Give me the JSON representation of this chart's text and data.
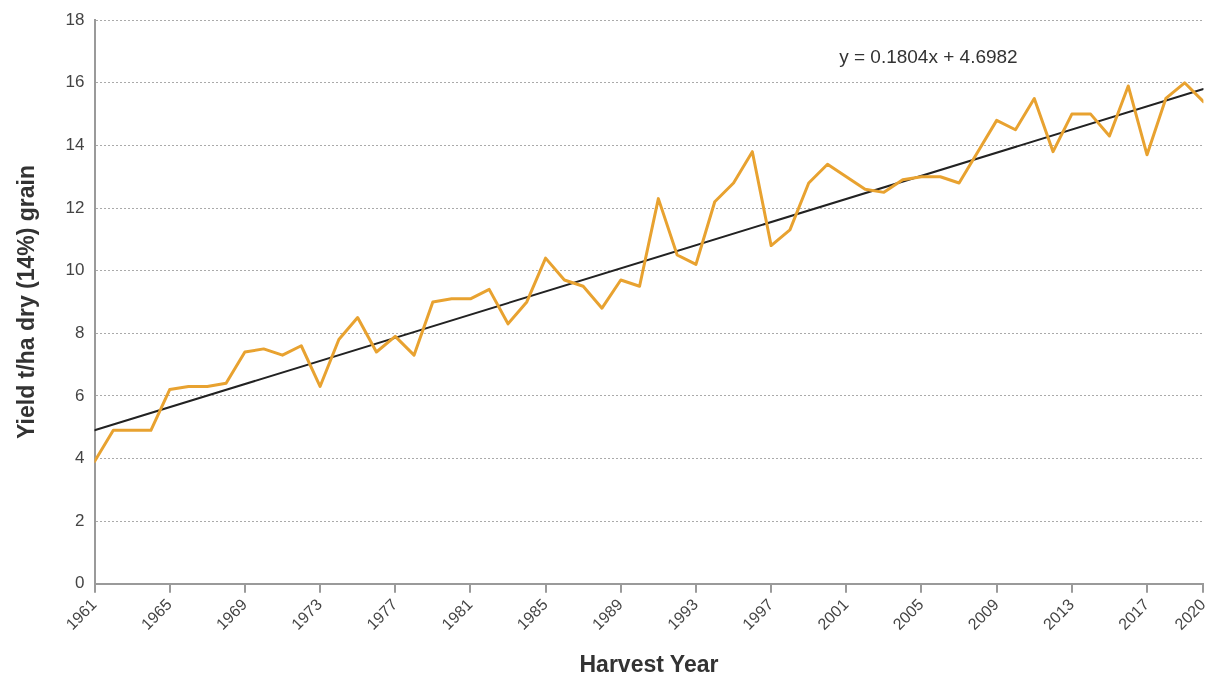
{
  "chart_data": {
    "type": "line",
    "xlabel": "Harvest Year",
    "ylabel": "Yield t/ha dry (14%) grain",
    "x": [
      1961,
      1962,
      1963,
      1964,
      1965,
      1966,
      1967,
      1968,
      1969,
      1970,
      1971,
      1972,
      1973,
      1974,
      1975,
      1976,
      1977,
      1978,
      1979,
      1980,
      1981,
      1982,
      1983,
      1984,
      1985,
      1986,
      1987,
      1988,
      1989,
      1990,
      1991,
      1992,
      1993,
      1994,
      1995,
      1996,
      1997,
      1998,
      1999,
      2000,
      2001,
      2002,
      2003,
      2004,
      2005,
      2006,
      2007,
      2008,
      2009,
      2010,
      2011,
      2012,
      2013,
      2014,
      2015,
      2016,
      2017,
      2018,
      2019,
      2020
    ],
    "series": [
      {
        "type": "line",
        "color": "#e8a230",
        "values": [
          3.9,
          4.9,
          4.9,
          4.9,
          6.2,
          6.3,
          6.3,
          6.4,
          7.4,
          7.5,
          7.3,
          7.6,
          6.3,
          7.8,
          8.5,
          7.4,
          7.9,
          7.3,
          9.0,
          9.1,
          9.1,
          9.4,
          8.3,
          9.0,
          10.4,
          9.7,
          9.5,
          8.8,
          9.7,
          9.5,
          12.3,
          10.5,
          10.2,
          12.2,
          12.8,
          13.8,
          10.8,
          11.3,
          12.8,
          13.4,
          13.0,
          12.6,
          12.5,
          12.9,
          13.0,
          13.0,
          12.8,
          13.8,
          14.8,
          14.5,
          15.5,
          13.8,
          15.0,
          15.0,
          14.3,
          15.9,
          13.7,
          15.5,
          16.0,
          15.4
        ]
      },
      {
        "type": "line",
        "color": "#222222",
        "x": [
          1961,
          2020
        ],
        "values": [
          4.9,
          15.8
        ]
      }
    ],
    "xlim": [
      1961,
      2020
    ],
    "xticks": [
      1961,
      1965,
      1969,
      1973,
      1977,
      1981,
      1985,
      1989,
      1993,
      1997,
      2001,
      2005,
      2009,
      2013,
      2017,
      2020
    ],
    "ylim": [
      0,
      18
    ],
    "yticks": [
      0,
      2,
      4,
      6,
      8,
      10,
      12,
      14,
      16,
      18
    ],
    "grid": "y",
    "legend": false,
    "marker": "none",
    "line_style": "solid",
    "annotations": [
      "y = 0.1804x + 4.6982"
    ]
  }
}
